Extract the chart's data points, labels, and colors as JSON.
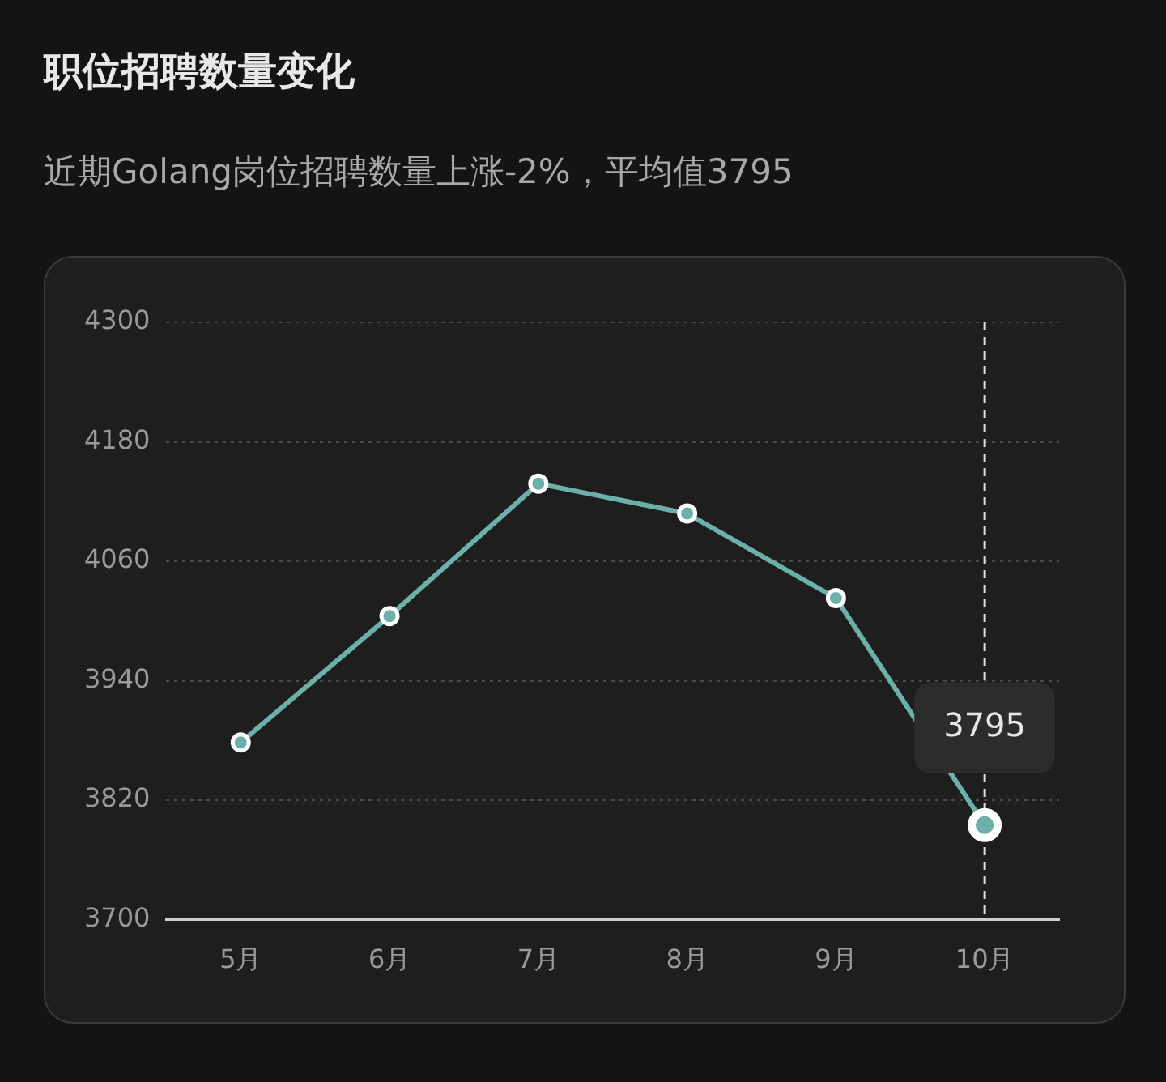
{
  "chart_data": {
    "type": "line",
    "title": "职位招聘数量变化",
    "subtitle": "近期Golang岗位招聘数量上涨-2%，平均值3795",
    "categories": [
      "5月",
      "6月",
      "7月",
      "8月",
      "9月",
      "10月"
    ],
    "series": [
      {
        "color": "#6cb0aa",
        "values": [
          3878,
          4005,
          4138,
          4108,
          4023,
          3795
        ],
        "value_labels": [
          null,
          null,
          null,
          null,
          null,
          "3795"
        ]
      }
    ],
    "ylim": [
      3700,
      4300
    ],
    "yticks": [
      3700,
      3820,
      3940,
      4060,
      4180,
      4300
    ],
    "grid": "y",
    "legend": false,
    "marker": "circle",
    "line_style": "solid",
    "ref_lines": [
      {
        "axis": "x",
        "value": "10月",
        "color": "#dddddd",
        "line_style": "dashed"
      }
    ]
  }
}
